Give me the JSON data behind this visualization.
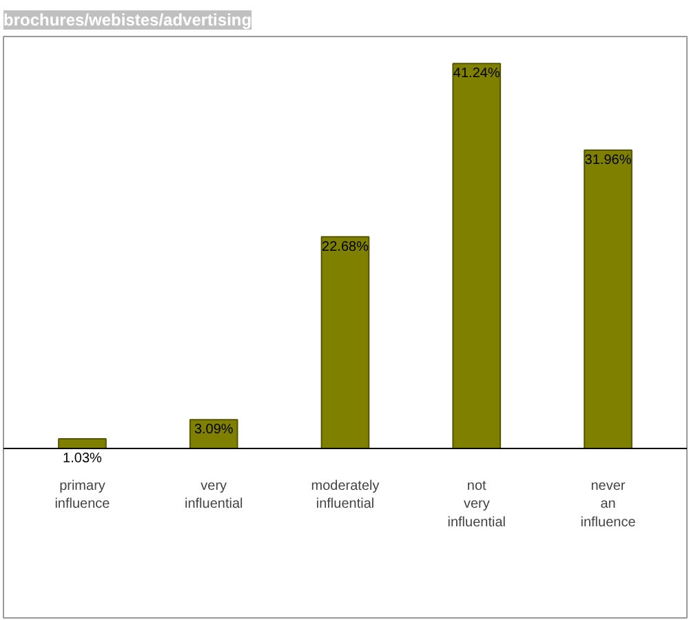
{
  "chart_data": {
    "type": "bar",
    "title": "brochures/webistes/advertising",
    "categories": [
      "primary influence",
      "very influential",
      "moderately influential",
      "not very influential",
      "never an influence"
    ],
    "values": [
      1.03,
      3.09,
      22.68,
      41.24,
      31.96
    ],
    "value_labels": [
      "1.03%",
      "3.09%",
      "22.68%",
      "41.24%",
      "31.96%"
    ],
    "color": "#808000",
    "grid": false
  }
}
